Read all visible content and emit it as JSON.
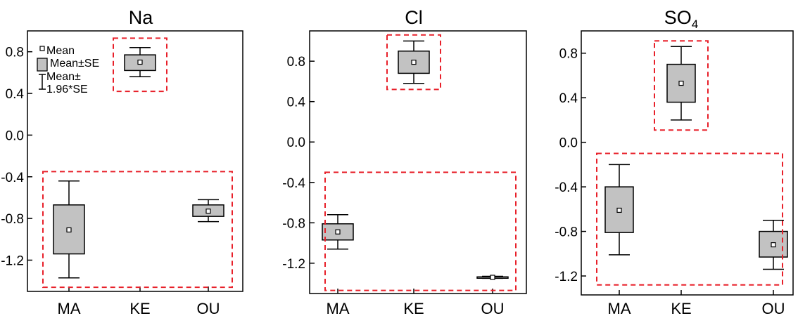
{
  "chart_data": [
    {
      "type": "box",
      "title": "Na",
      "categories": [
        "MA",
        "KE",
        "OU"
      ],
      "ylim": [
        -1.5,
        1.0
      ],
      "yticks": [
        0.8,
        0.4,
        0.0,
        -0.4,
        -0.8,
        -1.2
      ],
      "ytick_labels": [
        "0.8",
        "0.4",
        "0.0",
        "-0.4",
        "-0.8",
        "-1.2"
      ],
      "series": [
        {
          "category": "MA",
          "mean": -0.91,
          "se_low": -1.14,
          "se_high": -0.67,
          "ci_low": -1.37,
          "ci_high": -0.44
        },
        {
          "category": "KE",
          "mean": 0.7,
          "se_low": 0.62,
          "se_high": 0.77,
          "ci_low": 0.56,
          "ci_high": 0.84
        },
        {
          "category": "OU",
          "mean": -0.73,
          "se_low": -0.78,
          "se_high": -0.67,
          "ci_low": -0.83,
          "ci_high": -0.62
        }
      ],
      "highlight_boxes": [
        {
          "categories": [
            "KE"
          ],
          "y_range": [
            0.42,
            0.93
          ]
        },
        {
          "categories": [
            "MA",
            "OU"
          ],
          "y_range": [
            -1.46,
            -0.35
          ]
        }
      ],
      "legend": {
        "position": "top-left",
        "entries": [
          "Mean",
          "Mean±SE",
          "Mean±",
          "1.96*SE"
        ]
      }
    },
    {
      "type": "box",
      "title": "Cl",
      "categories": [
        "MA",
        "KE",
        "OU"
      ],
      "ylim": [
        -1.5,
        1.1
      ],
      "yticks": [
        0.8,
        0.4,
        0.0,
        -0.4,
        -0.8,
        -1.2
      ],
      "ytick_labels": [
        "0.8",
        "0.4",
        "0.0",
        "-0.4",
        "-0.8",
        "-1.2"
      ],
      "series": [
        {
          "category": "MA",
          "mean": -0.89,
          "se_low": -0.97,
          "se_high": -0.81,
          "ci_low": -1.06,
          "ci_high": -0.72
        },
        {
          "category": "KE",
          "mean": 0.79,
          "se_low": 0.68,
          "se_high": 0.9,
          "ci_low": 0.58,
          "ci_high": 1.0
        },
        {
          "category": "OU",
          "mean": -1.34,
          "se_low": -1.345,
          "se_high": -1.335,
          "ci_low": -1.35,
          "ci_high": -1.33
        }
      ],
      "highlight_boxes": [
        {
          "categories": [
            "KE"
          ],
          "y_range": [
            0.52,
            1.06
          ]
        },
        {
          "categories": [
            "MA",
            "OU"
          ],
          "y_range": [
            -1.47,
            -0.3
          ]
        }
      ]
    },
    {
      "type": "box",
      "title": "SO",
      "title_subscript": "4",
      "categories": [
        "MA",
        "KE",
        "OU"
      ],
      "ylim": [
        -1.37,
        1.0
      ],
      "yticks": [
        0.8,
        0.4,
        0.0,
        -0.4,
        -0.8,
        -1.2
      ],
      "ytick_labels": [
        "0.8",
        "0.4",
        "0.0",
        "-0.4",
        "-0.8",
        "-1.2"
      ],
      "series": [
        {
          "category": "MA",
          "mean": -0.61,
          "se_low": -0.81,
          "se_high": -0.4,
          "ci_low": -1.01,
          "ci_high": -0.2
        },
        {
          "category": "KE",
          "mean": 0.53,
          "se_low": 0.36,
          "se_high": 0.7,
          "ci_low": 0.2,
          "ci_high": 0.86
        },
        {
          "category": "OU",
          "mean": -0.92,
          "se_low": -1.03,
          "se_high": -0.8,
          "ci_low": -1.14,
          "ci_high": -0.7
        }
      ],
      "highlight_boxes": [
        {
          "categories": [
            "KE"
          ],
          "y_range": [
            0.11,
            0.91
          ]
        },
        {
          "categories": [
            "MA",
            "OU"
          ],
          "y_range": [
            -1.28,
            -0.1
          ]
        }
      ]
    }
  ]
}
